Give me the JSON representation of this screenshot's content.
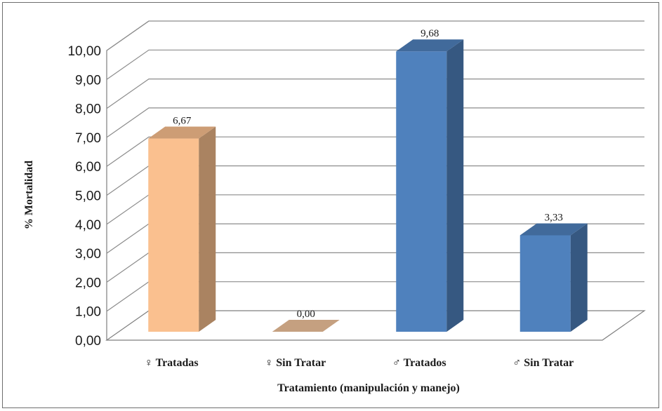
{
  "chart_data": {
    "type": "bar",
    "style": "3d-column",
    "categories": [
      "♀ Tratadas",
      "♀ Sin Tratar",
      "♂ Tratados",
      "♂ Sin Tratar"
    ],
    "values": [
      6.67,
      0.0,
      9.68,
      3.33
    ],
    "data_labels": [
      "6,67",
      "0,00",
      "9,68",
      "3,33"
    ],
    "bar_colors": [
      "#fac08f",
      "#c5a080",
      "#4f81bd",
      "#4f81bd"
    ],
    "xlabel": "Tratamiento (manipulación y manejo)",
    "ylabel": "% Mortalidad",
    "ylim": [
      0,
      10
    ],
    "yticks": [
      "0,00",
      "1,00",
      "2,00",
      "3,00",
      "4,00",
      "5,00",
      "6,00",
      "7,00",
      "8,00",
      "9,00",
      "10,00"
    ],
    "grid": true,
    "legend": "none"
  }
}
